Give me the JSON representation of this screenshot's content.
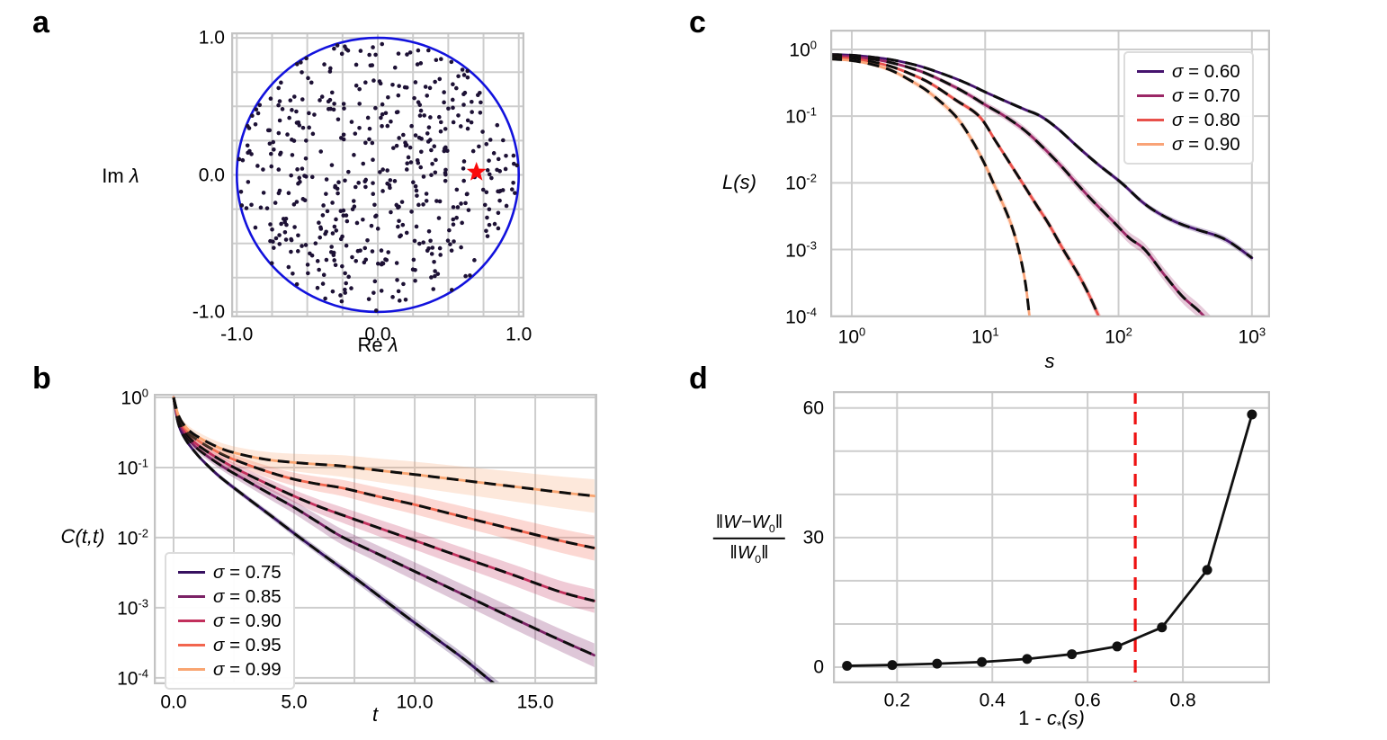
{
  "panels": {
    "a": {
      "letter": "a",
      "xlabel_prefix": "Re ",
      "xlabel_symbol": "λ",
      "ylabel_prefix": "Im ",
      "ylabel_symbol": "λ"
    },
    "b": {
      "letter": "b",
      "xlabel": "t",
      "ylabel": "C(t,t)"
    },
    "c": {
      "letter": "c",
      "xlabel": "s",
      "ylabel": "L(s)"
    },
    "d": {
      "letter": "d",
      "xlabel_pre": "1 - ",
      "xlabel_var": "c",
      "xlabel_sub": "*",
      "xlabel_post": "(s)",
      "ylabel_num_bar1": "‖",
      "ylabel_num_main": "W−W",
      "ylabel_num_sub": "0",
      "ylabel_num_bar2": "‖",
      "ylabel_den_bar1": "‖",
      "ylabel_den_main": "W",
      "ylabel_den_sub": "0",
      "ylabel_den_bar2": "‖"
    }
  },
  "style": {
    "grid_color": "#cdcdcd",
    "spine_color": "#c3c3c3",
    "text_color": "#000000",
    "theory_dash_color": "#0d0d0d"
  },
  "chart_data": [
    {
      "panel": "a",
      "type": "scatter",
      "xlim": [
        -1.04,
        1.04
      ],
      "ylim": [
        -1.04,
        1.04
      ],
      "grid_x": [
        -1,
        -0.75,
        -0.5,
        -0.25,
        0,
        0.25,
        0.5,
        0.75,
        1
      ],
      "grid_y": [
        -1,
        -0.75,
        -0.5,
        -0.25,
        0,
        0.25,
        0.5,
        0.75,
        1
      ],
      "xticks": [
        {
          "v": -1,
          "label": "-1.0"
        },
        {
          "v": 0,
          "label": "0.0"
        },
        {
          "v": 1,
          "label": "1.0"
        }
      ],
      "yticks": [
        {
          "v": 1,
          "label": "1.0"
        },
        {
          "v": 0,
          "label": "0.0"
        },
        {
          "v": -1,
          "label": "-1.0"
        }
      ],
      "unit_circle": {
        "radius": 1.0,
        "color": "#1212dd",
        "width": 2.6
      },
      "eigenvalues": {
        "n": 500,
        "seed": 11,
        "distribution": "uniform-unit-disk",
        "color": "#1d1135",
        "dot_radius": 2.3
      },
      "outlier_star": {
        "re": 0.7,
        "im": 0.02,
        "color": "#fa0a0a",
        "size": 10
      }
    },
    {
      "panel": "b",
      "type": "line",
      "xscale": "linear",
      "yscale": "log",
      "xlim": [
        -0.82,
        17.57
      ],
      "ylim": [
        8.1e-05,
        1.125
      ],
      "grid_x": [
        0,
        2.5,
        5,
        7.5,
        10,
        12.5,
        15,
        17.5
      ],
      "grid_y": [
        1,
        0.1,
        0.01,
        0.001,
        0.0001
      ],
      "xticks": [
        {
          "v": 0,
          "label": "0.0"
        },
        {
          "v": 5,
          "label": "5.0"
        },
        {
          "v": 10,
          "label": "10.0"
        },
        {
          "v": 15,
          "label": "15.0"
        }
      ],
      "yticks": [
        {
          "v": 1,
          "label": "10^0"
        },
        {
          "v": 0.1,
          "label": "10^-1"
        },
        {
          "v": 0.01,
          "label": "10^-2"
        },
        {
          "v": 0.001,
          "label": "10^-3"
        },
        {
          "v": 0.0001,
          "label": "10^-4"
        }
      ],
      "theory_dash": {
        "width": 3,
        "dash": [
          13,
          8
        ]
      },
      "series": [
        {
          "label_symbol": "σ",
          "label_text": " = 0.75",
          "sigma": 0.75,
          "color": "#36105f",
          "band": [
            0.015,
            0.08
          ],
          "points": [
            [
              0,
              1
            ],
            [
              0.2,
              0.42
            ],
            [
              0.5,
              0.25
            ],
            [
              1,
              0.15
            ],
            [
              1.5,
              0.1
            ],
            [
              2,
              0.07
            ],
            [
              3,
              0.038
            ],
            [
              4,
              0.021
            ],
            [
              5,
              0.0115
            ],
            [
              6,
              0.0064
            ],
            [
              7,
              0.0036
            ],
            [
              8,
              0.002
            ],
            [
              9,
              0.0011
            ],
            [
              10,
              0.00061
            ],
            [
              11,
              0.00034
            ],
            [
              12,
              0.00019
            ],
            [
              13,
              0.0001
            ],
            [
              13.8,
              6e-05
            ]
          ]
        },
        {
          "label_symbol": "σ",
          "label_text": " = 0.85",
          "sigma": 0.85,
          "color": "#7b2165",
          "band": [
            0.02,
            0.17
          ],
          "points": [
            [
              0,
              1
            ],
            [
              0.2,
              0.47
            ],
            [
              0.5,
              0.29
            ],
            [
              1,
              0.185
            ],
            [
              2,
              0.105
            ],
            [
              3,
              0.066
            ],
            [
              4,
              0.042
            ],
            [
              5,
              0.027
            ],
            [
              6,
              0.0165
            ],
            [
              7,
              0.0102
            ],
            [
              8.5,
              0.0058
            ],
            [
              10,
              0.0033
            ],
            [
              12,
              0.00155
            ],
            [
              14,
              0.00073
            ],
            [
              16,
              0.00035
            ],
            [
              17.45,
              0.00021
            ]
          ]
        },
        {
          "label_symbol": "σ",
          "label_text": " = 0.90",
          "sigma": 0.9,
          "color": "#c22f5c",
          "band": [
            0.02,
            0.17
          ],
          "points": [
            [
              0,
              1
            ],
            [
              0.2,
              0.5
            ],
            [
              0.5,
              0.315
            ],
            [
              1,
              0.21
            ],
            [
              2,
              0.125
            ],
            [
              3,
              0.082
            ],
            [
              4,
              0.056
            ],
            [
              5,
              0.039
            ],
            [
              6,
              0.028
            ],
            [
              7,
              0.021
            ],
            [
              8.5,
              0.0138
            ],
            [
              10,
              0.0091
            ],
            [
              12,
              0.0052
            ],
            [
              14,
              0.003
            ],
            [
              16,
              0.0017
            ],
            [
              17.45,
              0.00125
            ]
          ]
        },
        {
          "label_symbol": "σ",
          "label_text": " = 0.95",
          "sigma": 0.95,
          "color": "#f2654e",
          "band": [
            0.02,
            0.18
          ],
          "points": [
            [
              0,
              1
            ],
            [
              0.2,
              0.53
            ],
            [
              0.5,
              0.35
            ],
            [
              1,
              0.245
            ],
            [
              2,
              0.155
            ],
            [
              3,
              0.112
            ],
            [
              4,
              0.085
            ],
            [
              5,
              0.068
            ],
            [
              6,
              0.058
            ],
            [
              7,
              0.051
            ],
            [
              8.5,
              0.0385
            ],
            [
              10,
              0.0295
            ],
            [
              12,
              0.0198
            ],
            [
              14,
              0.0134
            ],
            [
              16,
              0.0091
            ],
            [
              17.45,
              0.0071
            ]
          ]
        },
        {
          "label_symbol": "σ",
          "label_text": " = 0.99",
          "sigma": 0.99,
          "color": "#f9a571",
          "band": [
            0.025,
            0.24
          ],
          "points": [
            [
              0,
              1
            ],
            [
              0.2,
              0.56
            ],
            [
              0.5,
              0.38
            ],
            [
              1,
              0.275
            ],
            [
              2,
              0.185
            ],
            [
              3,
              0.148
            ],
            [
              4,
              0.128
            ],
            [
              5,
              0.118
            ],
            [
              6,
              0.111
            ],
            [
              7,
              0.105
            ],
            [
              8.5,
              0.091
            ],
            [
              10,
              0.0795
            ],
            [
              12,
              0.0655
            ],
            [
              14,
              0.054
            ],
            [
              16,
              0.0445
            ],
            [
              17.45,
              0.0392
            ]
          ]
        }
      ]
    },
    {
      "panel": "c",
      "type": "line",
      "xscale": "log",
      "yscale": "log",
      "xlim": [
        0.689,
        1368
      ],
      "ylim": [
        9.6e-05,
        1.98
      ],
      "grid_x": [
        1,
        10,
        100,
        1000
      ],
      "grid_y": [
        1,
        0.1,
        0.01,
        0.001,
        0.0001
      ],
      "xticks": [
        {
          "v": 1,
          "label": "10^0"
        },
        {
          "v": 10,
          "label": "10^1"
        },
        {
          "v": 100,
          "label": "10^2"
        },
        {
          "v": 1000,
          "label": "10^3"
        }
      ],
      "yticks": [
        {
          "v": 1,
          "label": "10^0"
        },
        {
          "v": 0.1,
          "label": "10^-1"
        },
        {
          "v": 0.01,
          "label": "10^-2"
        },
        {
          "v": 0.001,
          "label": "10^-3"
        },
        {
          "v": 0.0001,
          "label": "10^-4"
        }
      ],
      "theory_dash": {
        "width": 3,
        "dash": [
          13,
          8
        ]
      },
      "series": [
        {
          "label_symbol": "σ",
          "label_text": " = 0.60",
          "sigma": 0.6,
          "color": "#45136e",
          "band": [
            0.008,
            0.05
          ],
          "points": [
            [
              0.69,
              0.84
            ],
            [
              1,
              0.82
            ],
            [
              1.4,
              0.77
            ],
            [
              2,
              0.7
            ],
            [
              3,
              0.585
            ],
            [
              4,
              0.49
            ],
            [
              6,
              0.365
            ],
            [
              8,
              0.285
            ],
            [
              10,
              0.23
            ],
            [
              14,
              0.17
            ],
            [
              20,
              0.125
            ],
            [
              26,
              0.1
            ],
            [
              35,
              0.065
            ],
            [
              50,
              0.034
            ],
            [
              70,
              0.019
            ],
            [
              105,
              0.01
            ],
            [
              150,
              0.0052
            ],
            [
              200,
              0.0035
            ],
            [
              280,
              0.0025
            ],
            [
              400,
              0.00195
            ],
            [
              550,
              0.0016
            ],
            [
              700,
              0.00125
            ],
            [
              1000,
              0.00075
            ]
          ]
        },
        {
          "label_symbol": "σ",
          "label_text": " = 0.70",
          "sigma": 0.7,
          "color": "#9b2766",
          "band": [
            0.008,
            0.11
          ],
          "points": [
            [
              0.69,
              0.8
            ],
            [
              1,
              0.78
            ],
            [
              1.4,
              0.72
            ],
            [
              2,
              0.63
            ],
            [
              3,
              0.5
            ],
            [
              4,
              0.4
            ],
            [
              6,
              0.27
            ],
            [
              8,
              0.195
            ],
            [
              10,
              0.148
            ],
            [
              14,
              0.1
            ],
            [
              20,
              0.06
            ],
            [
              28,
              0.032
            ],
            [
              38,
              0.017
            ],
            [
              48,
              0.01
            ],
            [
              65,
              0.0052
            ],
            [
              90,
              0.0027
            ],
            [
              120,
              0.0015
            ],
            [
              157,
              0.001
            ],
            [
              220,
              0.00042
            ],
            [
              300,
              0.0002
            ],
            [
              400,
              0.00012
            ],
            [
              520,
              7e-05
            ]
          ]
        },
        {
          "label_symbol": "σ",
          "label_text": " = 0.80",
          "sigma": 0.8,
          "color": "#e8504a",
          "band": [
            0.008,
            0.09
          ],
          "points": [
            [
              0.69,
              0.76
            ],
            [
              1,
              0.73
            ],
            [
              1.4,
              0.655
            ],
            [
              2,
              0.55
            ],
            [
              3,
              0.4
            ],
            [
              4,
              0.3
            ],
            [
              6,
              0.175
            ],
            [
              9,
              0.1
            ],
            [
              12,
              0.042
            ],
            [
              15,
              0.021
            ],
            [
              19,
              0.01
            ],
            [
              24,
              0.0048
            ],
            [
              30,
              0.0024
            ],
            [
              38.5,
              0.001
            ],
            [
              50,
              0.00042
            ],
            [
              60,
              0.00021
            ],
            [
              71,
              0.0001
            ],
            [
              80,
              6e-05
            ]
          ]
        },
        {
          "label_symbol": "σ",
          "label_text": " = 0.90",
          "sigma": 0.9,
          "color": "#f9a377",
          "band": [
            0.008,
            0.14
          ],
          "points": [
            [
              0.69,
              0.72
            ],
            [
              1,
              0.68
            ],
            [
              1.4,
              0.6
            ],
            [
              2,
              0.48
            ],
            [
              3,
              0.31
            ],
            [
              4,
              0.21
            ],
            [
              6,
              0.1
            ],
            [
              8,
              0.043
            ],
            [
              10,
              0.0185
            ],
            [
              11.5,
              0.01
            ],
            [
              14,
              0.0042
            ],
            [
              16,
              0.0021
            ],
            [
              18,
              0.00092
            ],
            [
              20,
              0.00032
            ],
            [
              21.5,
              0.0001
            ],
            [
              22.5,
              5e-05
            ]
          ]
        }
      ]
    },
    {
      "panel": "d",
      "type": "scatter-line",
      "xscale": "linear",
      "yscale": "linear",
      "xlim": [
        0.0654,
        0.983
      ],
      "ylim": [
        -3.75,
        63.9
      ],
      "grid_x": [
        0.2,
        0.4,
        0.6,
        0.8
      ],
      "grid_y": [
        0,
        10,
        20,
        30,
        40,
        50,
        60
      ],
      "xticks": [
        {
          "v": 0.2,
          "label": "0.2"
        },
        {
          "v": 0.4,
          "label": "0.4"
        },
        {
          "v": 0.6,
          "label": "0.6"
        },
        {
          "v": 0.8,
          "label": "0.8"
        }
      ],
      "yticks": [
        {
          "v": 0,
          "label": "0"
        },
        {
          "v": 30,
          "label": "30"
        },
        {
          "v": 60,
          "label": "60"
        }
      ],
      "series": [
        {
          "color": "#111111",
          "line_width": 2.8,
          "marker_radius": 5.5,
          "points": [
            [
              0.095,
              0.3
            ],
            [
              0.19,
              0.5
            ],
            [
              0.284,
              0.8
            ],
            [
              0.378,
              1.2
            ],
            [
              0.473,
              1.9
            ],
            [
              0.567,
              3.0
            ],
            [
              0.662,
              4.8
            ],
            [
              0.756,
              9.2
            ],
            [
              0.851,
              22.5
            ],
            [
              0.945,
              58.5
            ]
          ]
        }
      ],
      "vline": {
        "x": 0.7,
        "color": "#ee1111",
        "dash": [
          14,
          9
        ],
        "width": 3.2
      }
    }
  ]
}
